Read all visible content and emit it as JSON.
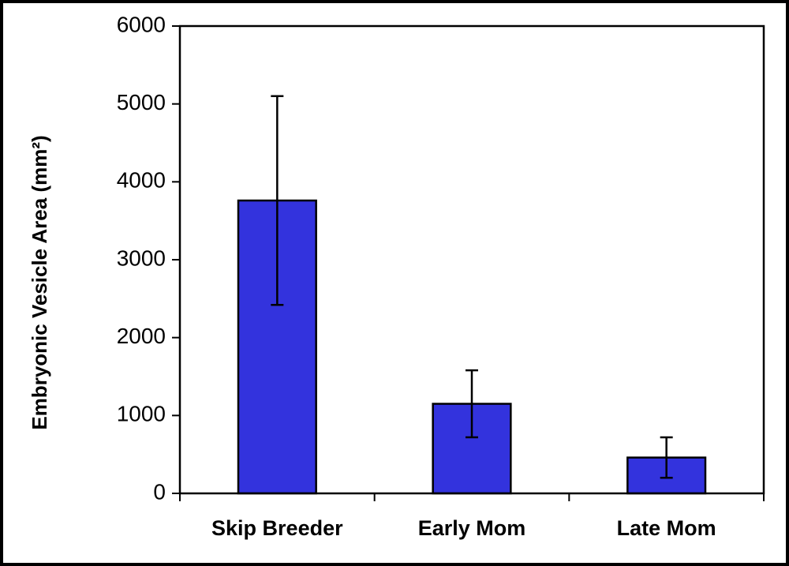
{
  "chart_data": {
    "type": "bar",
    "ylabel": "Embryonic Vesicle Area (mm²)",
    "categories": [
      "Skip Breeder",
      "Early Mom",
      "Late Mom"
    ],
    "values": [
      3760,
      1150,
      460
    ],
    "errors": [
      1340,
      430,
      260
    ],
    "color": "#3333dd",
    "ylim": [
      0,
      6000
    ],
    "yticks": [
      0,
      1000,
      2000,
      3000,
      4000,
      5000,
      6000
    ],
    "grid": false
  }
}
